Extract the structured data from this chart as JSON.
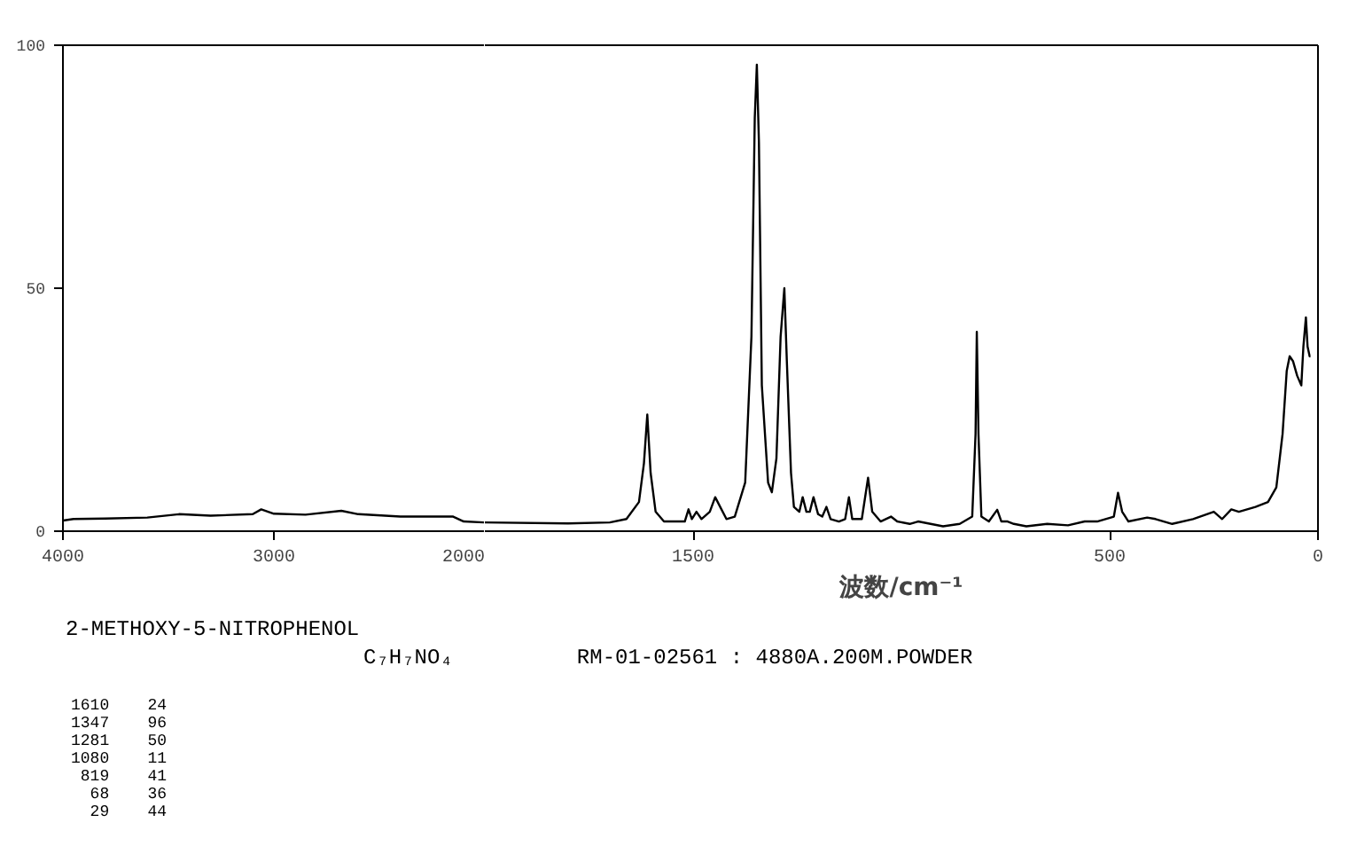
{
  "chart_data": [
    {
      "type": "line",
      "xlim": [
        4000,
        2000
      ],
      "xticks": [
        4000,
        3000,
        2000
      ],
      "ylim": [
        0,
        100
      ],
      "yticks": [
        0,
        50,
        100
      ],
      "grid": false,
      "tick_labels": "xy",
      "x": [
        4000,
        3950,
        3800,
        3600,
        3450,
        3300,
        3100,
        3060,
        3000,
        2850,
        2680,
        2600,
        2400,
        2150,
        2100,
        2000
      ],
      "series": [
        {
          "color": "#000000",
          "values": [
            2.2,
            2.5,
            2.6,
            2.8,
            3.5,
            3.2,
            3.5,
            4.5,
            3.6,
            3.4,
            4.2,
            3.5,
            3.0,
            3.0,
            2.0,
            1.8
          ]
        }
      ],
      "annotations": [
        "2-METHOXY-5-NITROPHENOL",
        "C₇H₇NO₄",
        "RM-01-02561 : 4880A.200M.POWDER",
        "1610    24",
        "1347    96",
        "1281    50",
        "1080    11",
        " 819    41",
        "  68    36",
        "  29    44"
      ]
    },
    {
      "type": "line",
      "xlim": [
        2000,
        0
      ],
      "xticks": [
        1500,
        500,
        0
      ],
      "ylim": [
        0,
        100
      ],
      "grid": false,
      "tick_labels": "x",
      "xlabel": "波数/cm⁻¹",
      "x": [
        2000,
        1800,
        1700,
        1660,
        1630,
        1618,
        1610,
        1602,
        1590,
        1570,
        1520,
        1511,
        1503,
        1492,
        1480,
        1460,
        1447,
        1435,
        1420,
        1400,
        1375,
        1360,
        1352,
        1347,
        1342,
        1335,
        1320,
        1311,
        1300,
        1290,
        1281,
        1275,
        1265,
        1258,
        1245,
        1237,
        1228,
        1220,
        1211,
        1200,
        1190,
        1180,
        1170,
        1150,
        1135,
        1126,
        1118,
        1095,
        1080,
        1070,
        1050,
        1025,
        1010,
        980,
        960,
        900,
        860,
        830,
        822,
        819,
        815,
        808,
        790,
        770,
        760,
        745,
        730,
        700,
        650,
        600,
        560,
        530,
        490,
        480,
        470,
        455,
        410,
        390,
        350,
        300,
        250,
        230,
        208,
        190,
        150,
        120,
        100,
        85,
        75,
        68,
        60,
        50,
        40,
        35,
        29,
        25,
        20,
        18
      ],
      "series": [
        {
          "color": "#000000",
          "values": [
            1.8,
            1.6,
            1.8,
            2.5,
            6,
            14,
            24,
            12,
            4,
            2,
            2,
            4.5,
            2.5,
            4,
            2.5,
            4,
            7,
            5,
            2.5,
            3,
            10,
            40,
            85,
            96,
            80,
            30,
            10,
            8,
            15,
            40,
            50,
            35,
            12,
            5,
            4,
            7,
            4,
            4,
            7,
            3.5,
            3,
            5,
            2.5,
            2,
            2.5,
            7,
            2.5,
            2.5,
            11,
            4,
            2,
            3,
            2,
            1.5,
            2,
            1,
            1.5,
            3,
            20,
            41,
            20,
            3,
            2,
            4.4,
            2,
            2,
            1.5,
            1,
            1.5,
            1.2,
            2,
            2,
            3,
            7.9,
            4,
            2,
            2.8,
            2.5,
            1.5,
            2.5,
            4,
            2.5,
            4.5,
            4,
            5,
            6,
            9,
            20,
            33,
            36,
            35,
            32,
            30,
            38,
            44,
            38,
            36,
            36
          ]
        }
      ]
    }
  ]
}
